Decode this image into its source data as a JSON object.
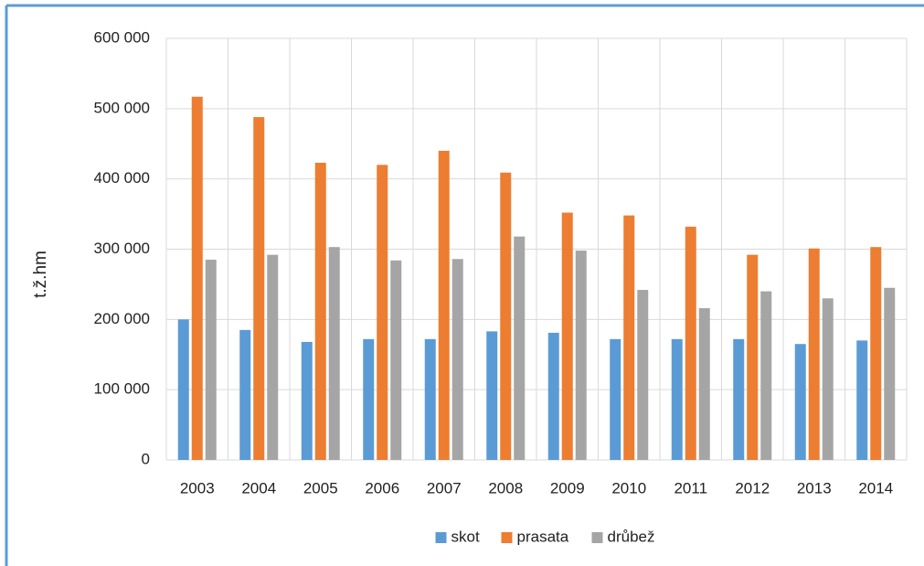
{
  "chart_data": {
    "type": "bar",
    "y_label": "t.ž.hm",
    "categories": [
      "2003",
      "2004",
      "2005",
      "2006",
      "2007",
      "2008",
      "2009",
      "2010",
      "2011",
      "2012",
      "2013",
      "2014"
    ],
    "series": [
      {
        "name": "skot",
        "color": "#5b9bd5",
        "values": [
          200000,
          185000,
          168000,
          172000,
          172000,
          183000,
          181000,
          172000,
          172000,
          172000,
          165000,
          170000
        ]
      },
      {
        "name": "prasata",
        "color": "#ed7d31",
        "values": [
          517000,
          488000,
          423000,
          420000,
          440000,
          409000,
          352000,
          348000,
          332000,
          292000,
          301000,
          303000
        ]
      },
      {
        "name": "drůbež",
        "color": "#a5a5a5",
        "values": [
          285000,
          292000,
          303000,
          284000,
          286000,
          318000,
          298000,
          242000,
          216000,
          240000,
          230000,
          245000
        ]
      }
    ],
    "ylim": [
      0,
      600000
    ],
    "yticks": [
      0,
      {
        "value": 100000,
        "label": "100 000"
      },
      {
        "value": 200000,
        "label": "200 000"
      },
      {
        "value": 300000,
        "label": "300 000"
      },
      {
        "value": 400000,
        "label": "400 000"
      },
      {
        "value": 500000,
        "label": "500 000"
      },
      {
        "value": 600000,
        "label": "600 000"
      }
    ],
    "grid": true,
    "legend": "bottom"
  }
}
